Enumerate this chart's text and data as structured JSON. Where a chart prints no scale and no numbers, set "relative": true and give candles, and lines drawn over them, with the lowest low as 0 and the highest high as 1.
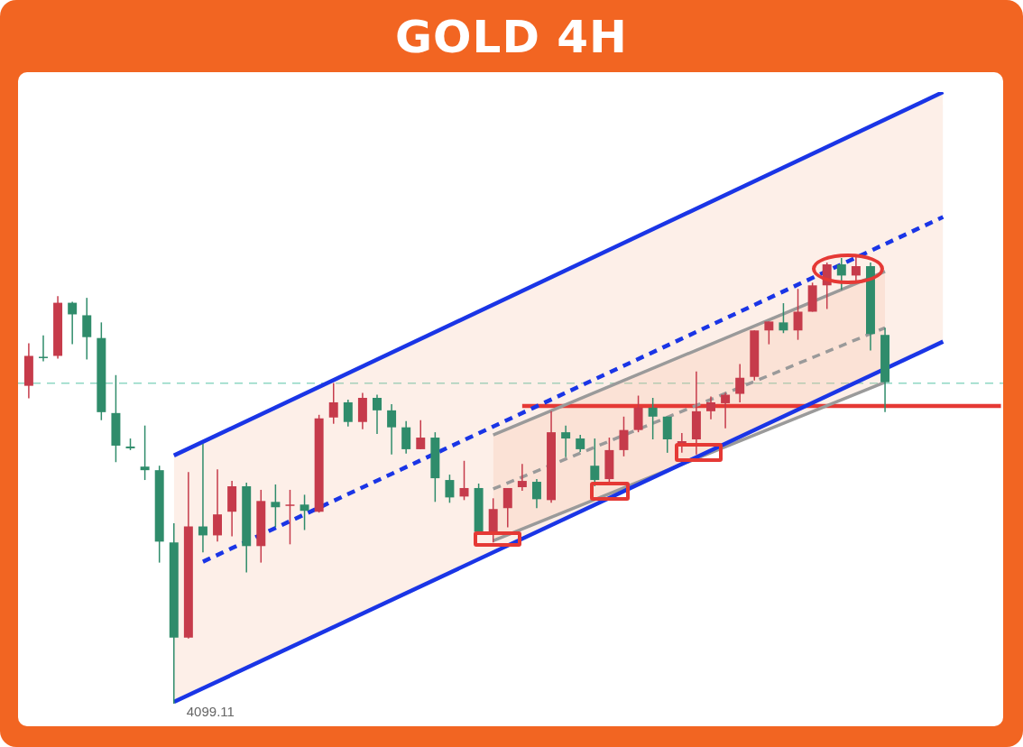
{
  "chart_data": {
    "type": "candlestick",
    "title": "GOLD 4H",
    "relative": true,
    "tick_labels": false,
    "legend": false,
    "categories": [
      null,
      null,
      null,
      null,
      null,
      null,
      null,
      null,
      null,
      null,
      null,
      null,
      null,
      null,
      null,
      null,
      null,
      null,
      null,
      null,
      null,
      null,
      null,
      null,
      null,
      null,
      null,
      null,
      null,
      null,
      null,
      null,
      null,
      null,
      null,
      null,
      null,
      null,
      null,
      null,
      null,
      null,
      null,
      null,
      null,
      null,
      null,
      null,
      null,
      null,
      null,
      null,
      null,
      null,
      null,
      null,
      null,
      null,
      null,
      null,
      null,
      null,
      null,
      null,
      null,
      null,
      null,
      null
    ],
    "ohlc": [
      [
        0.712,
        0.807,
        0.684,
        0.779
      ],
      [
        0.777,
        0.825,
        0.767,
        0.775
      ],
      [
        0.779,
        0.913,
        0.773,
        0.898
      ],
      [
        0.898,
        0.9,
        0.805,
        0.872
      ],
      [
        0.87,
        0.909,
        0.771,
        0.821
      ],
      [
        0.819,
        0.854,
        0.635,
        0.653
      ],
      [
        0.651,
        0.736,
        0.541,
        0.578
      ],
      [
        0.576,
        0.594,
        0.568,
        0.572
      ],
      [
        0.531,
        0.623,
        0.501,
        0.523
      ],
      [
        0.523,
        0.533,
        0.316,
        0.363
      ],
      [
        0.361,
        0.404,
        0,
        0.148
      ],
      [
        0.148,
        0.519,
        0.146,
        0.397
      ],
      [
        0.397,
        0.582,
        0.339,
        0.377
      ],
      [
        0.377,
        0.525,
        0.363,
        0.424
      ],
      [
        0.43,
        0.499,
        0.375,
        0.487
      ],
      [
        0.487,
        0.495,
        0.294,
        0.353
      ],
      [
        0.353,
        0.479,
        0.316,
        0.454
      ],
      [
        0.452,
        0.491,
        0.395,
        0.44
      ],
      [
        0.444,
        0.479,
        0.357,
        0.446
      ],
      [
        0.446,
        0.468,
        0.389,
        0.432
      ],
      [
        0.43,
        0.647,
        0.428,
        0.639
      ],
      [
        0.641,
        0.718,
        0.627,
        0.675
      ],
      [
        0.675,
        0.681,
        0.621,
        0.631
      ],
      [
        0.631,
        0.696,
        0.615,
        0.685
      ],
      [
        0.685,
        0.692,
        0.604,
        0.657
      ],
      [
        0.657,
        0.671,
        0.558,
        0.619
      ],
      [
        0.619,
        0.633,
        0.56,
        0.57
      ],
      [
        0.57,
        0.635,
        0.57,
        0.596
      ],
      [
        0.596,
        0.608,
        0.452,
        0.505
      ],
      [
        0.501,
        0.513,
        0.45,
        0.462
      ],
      [
        0.464,
        0.544,
        0.456,
        0.483
      ],
      [
        0.483,
        0.493,
        0.385,
        0.385
      ],
      [
        0.385,
        0.46,
        0.361,
        0.436
      ],
      [
        0.438,
        0.483,
        0.395,
        0.483
      ],
      [
        0.485,
        0.537,
        0.477,
        0.499
      ],
      [
        0.497,
        0.503,
        0.438,
        0.458
      ],
      [
        0.456,
        0.655,
        0.45,
        0.608
      ],
      [
        0.608,
        0.623,
        0.552,
        0.594
      ],
      [
        0.594,
        0.602,
        0.564,
        0.57
      ],
      [
        0.533,
        0.594,
        0.487,
        0.501
      ],
      [
        0.503,
        0.596,
        0.497,
        0.568
      ],
      [
        0.568,
        0.643,
        0.554,
        0.613
      ],
      [
        0.613,
        0.69,
        0.608,
        0.663
      ],
      [
        0.663,
        0.685,
        0.592,
        0.643
      ],
      [
        0.643,
        0.643,
        0.562,
        0.592
      ],
      [
        0.584,
        0.606,
        0.562,
        0.588
      ],
      [
        0.592,
        0.744,
        0.558,
        0.655
      ],
      [
        0.655,
        0.688,
        0.637,
        0.675
      ],
      [
        0.673,
        0.696,
        0.617,
        0.692
      ],
      [
        0.694,
        0.761,
        0.675,
        0.73
      ],
      [
        0.732,
        0.836,
        0.724,
        0.836
      ],
      [
        0.836,
        0.856,
        0.805,
        0.856
      ],
      [
        0.854,
        0.897,
        0.83,
        0.836
      ],
      [
        0.836,
        0.929,
        0.815,
        0.878
      ],
      [
        0.878,
        0.943,
        0.878,
        0.937
      ],
      [
        0.937,
        0.988,
        0.884,
        0.984
      ],
      [
        0.984,
        0.998,
        0.927,
        0.959
      ],
      [
        0.959,
        1,
        0.947,
        0.98
      ],
      [
        0.98,
        0.988,
        0.791,
        0.828
      ],
      [
        0.826,
        0.842,
        0.653,
        0.72
      ],
      null,
      null,
      null,
      null,
      null,
      null,
      null,
      null
    ],
    "series": [
      {
        "type": "line",
        "color": "#1a35e6",
        "line_style": "dashed",
        "values": [
          null,
          null,
          null,
          null,
          null,
          null,
          null,
          null,
          null,
          null,
          null,
          null,
          0.318,
          null,
          null,
          null,
          null,
          null,
          null,
          null,
          null,
          null,
          null,
          null,
          null,
          null,
          null,
          null,
          null,
          null,
          null,
          null,
          null,
          null,
          null,
          null,
          null,
          null,
          null,
          null,
          null,
          null,
          null,
          null,
          null,
          null,
          null,
          null,
          null,
          null,
          null,
          null,
          null,
          null,
          null,
          null,
          null,
          null,
          null,
          null,
          null,
          null,
          null,
          1.09,
          null,
          null,
          null,
          null
        ],
        "lower": [
          null,
          null,
          null,
          null,
          null,
          null,
          null,
          null,
          null,
          null,
          0.004,
          null,
          null,
          null,
          null,
          null,
          null,
          null,
          null,
          null,
          null,
          null,
          null,
          null,
          null,
          null,
          null,
          null,
          null,
          null,
          null,
          null,
          null,
          null,
          null,
          null,
          null,
          null,
          null,
          null,
          null,
          null,
          null,
          null,
          null,
          null,
          null,
          null,
          null,
          null,
          null,
          null,
          null,
          null,
          null,
          null,
          null,
          null,
          null,
          null,
          null,
          null,
          null,
          0.811,
          null,
          null,
          null,
          null
        ],
        "upper": [
          null,
          null,
          null,
          null,
          null,
          null,
          null,
          null,
          null,
          null,
          0.556,
          null,
          null,
          null,
          null,
          null,
          null,
          null,
          null,
          null,
          null,
          null,
          null,
          null,
          null,
          null,
          null,
          null,
          null,
          null,
          null,
          null,
          null,
          null,
          null,
          null,
          null,
          null,
          null,
          null,
          null,
          null,
          null,
          null,
          null,
          null,
          null,
          null,
          null,
          null,
          null,
          null,
          null,
          null,
          null,
          null,
          null,
          null,
          null,
          null,
          null,
          null,
          null,
          1.37,
          null,
          null,
          null,
          null
        ]
      },
      {
        "type": "line",
        "color": "#1a35e6",
        "line_style": "solid",
        "values": [
          null,
          null,
          null,
          null,
          null,
          null,
          null,
          null,
          null,
          null,
          0.556,
          null,
          null,
          null,
          null,
          null,
          null,
          null,
          null,
          null,
          null,
          null,
          null,
          null,
          null,
          null,
          null,
          null,
          null,
          null,
          null,
          null,
          null,
          null,
          null,
          null,
          null,
          null,
          null,
          null,
          null,
          null,
          null,
          null,
          null,
          null,
          null,
          null,
          null,
          null,
          null,
          null,
          null,
          null,
          null,
          null,
          null,
          null,
          null,
          null,
          null,
          null,
          null,
          1.37,
          null,
          null,
          null,
          null
        ]
      },
      {
        "type": "line",
        "color": "#1a35e6",
        "line_style": "solid",
        "values": [
          null,
          null,
          null,
          null,
          null,
          null,
          null,
          null,
          null,
          null,
          0.004,
          null,
          null,
          null,
          null,
          null,
          null,
          null,
          null,
          null,
          null,
          null,
          null,
          null,
          null,
          null,
          null,
          null,
          null,
          null,
          null,
          null,
          null,
          null,
          null,
          null,
          null,
          null,
          null,
          null,
          null,
          null,
          null,
          null,
          null,
          null,
          null,
          null,
          null,
          null,
          null,
          null,
          null,
          null,
          null,
          null,
          null,
          null,
          null,
          null,
          null,
          null,
          null,
          0.811,
          null,
          null,
          null,
          null
        ]
      },
      {
        "type": "line",
        "color": "#9a9a9a",
        "line_style": "dashed",
        "values": [
          null,
          null,
          null,
          null,
          null,
          null,
          null,
          null,
          null,
          null,
          null,
          null,
          null,
          null,
          null,
          null,
          null,
          null,
          null,
          null,
          null,
          null,
          null,
          null,
          null,
          null,
          null,
          null,
          null,
          null,
          null,
          null,
          0.481,
          null,
          null,
          null,
          null,
          null,
          null,
          null,
          null,
          null,
          null,
          null,
          null,
          null,
          null,
          null,
          null,
          null,
          null,
          null,
          null,
          null,
          null,
          null,
          null,
          null,
          null,
          0.842,
          null,
          null,
          null,
          null,
          null,
          null,
          null,
          null
        ],
        "lower": [
          null,
          null,
          null,
          null,
          null,
          null,
          null,
          null,
          null,
          null,
          null,
          null,
          null,
          null,
          null,
          null,
          null,
          null,
          null,
          null,
          null,
          null,
          null,
          null,
          null,
          null,
          null,
          null,
          null,
          null,
          null,
          null,
          0.365,
          null,
          null,
          null,
          null,
          null,
          null,
          null,
          null,
          null,
          null,
          null,
          null,
          null,
          null,
          null,
          null,
          null,
          null,
          null,
          null,
          null,
          null,
          null,
          null,
          null,
          null,
          0.72,
          null,
          null,
          null,
          null,
          null,
          null,
          null,
          null
        ],
        "upper": [
          null,
          null,
          null,
          null,
          null,
          null,
          null,
          null,
          null,
          null,
          null,
          null,
          null,
          null,
          null,
          null,
          null,
          null,
          null,
          null,
          null,
          null,
          null,
          null,
          null,
          null,
          null,
          null,
          null,
          null,
          null,
          null,
          0.602,
          null,
          null,
          null,
          null,
          null,
          null,
          null,
          null,
          null,
          null,
          null,
          null,
          null,
          null,
          null,
          null,
          null,
          null,
          null,
          null,
          null,
          null,
          null,
          null,
          null,
          null,
          0.968,
          null,
          null,
          null,
          null,
          null,
          null,
          null,
          null
        ]
      },
      {
        "type": "line",
        "color": "#9a9a9a",
        "line_style": "solid",
        "values": [
          null,
          null,
          null,
          null,
          null,
          null,
          null,
          null,
          null,
          null,
          null,
          null,
          null,
          null,
          null,
          null,
          null,
          null,
          null,
          null,
          null,
          null,
          null,
          null,
          null,
          null,
          null,
          null,
          null,
          null,
          null,
          null,
          0.602,
          null,
          null,
          null,
          null,
          null,
          null,
          null,
          null,
          null,
          null,
          null,
          null,
          null,
          null,
          null,
          null,
          null,
          null,
          null,
          null,
          null,
          null,
          null,
          null,
          null,
          null,
          0.968,
          null,
          null,
          null,
          null,
          null,
          null,
          null,
          null
        ]
      },
      {
        "type": "line",
        "color": "#9a9a9a",
        "line_style": "solid",
        "values": [
          null,
          null,
          null,
          null,
          null,
          null,
          null,
          null,
          null,
          null,
          null,
          null,
          null,
          null,
          null,
          null,
          null,
          null,
          null,
          null,
          null,
          null,
          null,
          null,
          null,
          null,
          null,
          null,
          null,
          null,
          null,
          null,
          0.365,
          null,
          null,
          null,
          null,
          null,
          null,
          null,
          null,
          null,
          null,
          null,
          null,
          null,
          null,
          null,
          null,
          null,
          null,
          null,
          null,
          null,
          null,
          null,
          null,
          null,
          null,
          0.72,
          null,
          null,
          null,
          null,
          null,
          null,
          null,
          null
        ]
      },
      {
        "type": "line",
        "color": "#e53935",
        "line_style": "solid",
        "values": [
          null,
          null,
          null,
          null,
          null,
          null,
          null,
          null,
          null,
          null,
          null,
          null,
          null,
          null,
          null,
          null,
          null,
          null,
          null,
          null,
          null,
          null,
          null,
          null,
          null,
          null,
          null,
          null,
          null,
          null,
          null,
          null,
          null,
          null,
          0.667,
          null,
          null,
          null,
          null,
          null,
          null,
          null,
          null,
          null,
          null,
          null,
          null,
          null,
          null,
          null,
          null,
          null,
          null,
          null,
          null,
          null,
          null,
          null,
          null,
          null,
          null,
          null,
          null,
          null,
          null,
          null,
          null,
          0.667
        ]
      }
    ],
    "ref_lines": [
      {
        "axis": "y",
        "value": 0.718,
        "color": "#8fd8c4",
        "line_style": "dashed"
      }
    ],
    "annotations": [
      "4099.11"
    ]
  }
}
